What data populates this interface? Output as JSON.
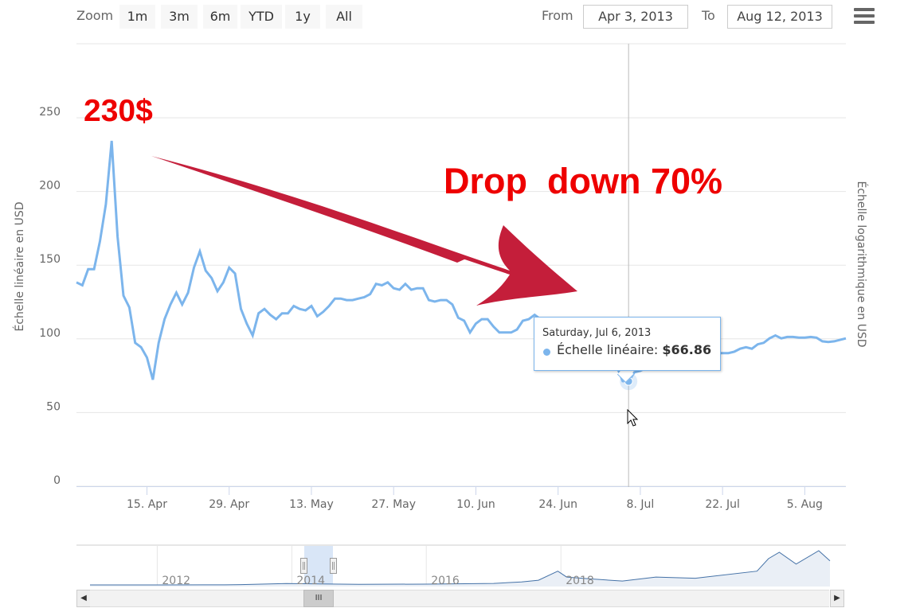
{
  "toolbar": {
    "zoom_label": "Zoom",
    "zoom_buttons": [
      "1m",
      "3m",
      "6m",
      "YTD",
      "1y",
      "All"
    ],
    "from_label": "From",
    "from_value": "Apr 3, 2013",
    "to_label": "To",
    "to_value": "Aug 12, 2013",
    "menu_icon": "hamburger-menu-icon"
  },
  "annotations": {
    "peak_label": "230$",
    "drop_label": "Drop  down 70%",
    "arrow_icon": "red-arrow-icon",
    "color": "#ee0000"
  },
  "tooltip": {
    "date": "Saturday, Jul 6, 2013",
    "series": "Échelle linéaire",
    "value": "$66.86"
  },
  "chart_data": {
    "type": "line",
    "title": "",
    "xlabel": "",
    "ylabel": "Échelle linéaire en USD",
    "ylabel_right": "Échelle logarithmique en USD",
    "ylim": [
      0,
      250
    ],
    "y_ticks": [
      0,
      50,
      100,
      150,
      200,
      250
    ],
    "xlim": [
      "2013-04-03",
      "2013-08-12"
    ],
    "x_ticks": [
      {
        "date": "2013-04-15",
        "label": "15. Apr"
      },
      {
        "date": "2013-04-29",
        "label": "29. Apr"
      },
      {
        "date": "2013-05-13",
        "label": "13. May"
      },
      {
        "date": "2013-05-27",
        "label": "27. May"
      },
      {
        "date": "2013-06-10",
        "label": "10. Jun"
      },
      {
        "date": "2013-06-24",
        "label": "24. Jun"
      },
      {
        "date": "2013-07-08",
        "label": "8. Jul"
      },
      {
        "date": "2013-07-22",
        "label": "22. Jul"
      },
      {
        "date": "2013-08-05",
        "label": "5. Aug"
      }
    ],
    "grid": true,
    "line_color": "#7cb5ec",
    "series": [
      {
        "name": "Échelle linéaire",
        "points": [
          [
            "2013-04-03",
            134
          ],
          [
            "2013-04-04",
            132
          ],
          [
            "2013-04-05",
            143
          ],
          [
            "2013-04-06",
            143
          ],
          [
            "2013-04-07",
            162
          ],
          [
            "2013-04-08",
            187
          ],
          [
            "2013-04-09",
            230
          ],
          [
            "2013-04-10",
            165
          ],
          [
            "2013-04-11",
            125
          ],
          [
            "2013-04-12",
            117
          ],
          [
            "2013-04-13",
            93
          ],
          [
            "2013-04-14",
            90
          ],
          [
            "2013-04-15",
            83
          ],
          [
            "2013-04-16",
            68
          ],
          [
            "2013-04-17",
            93
          ],
          [
            "2013-04-18",
            109
          ],
          [
            "2013-04-19",
            119
          ],
          [
            "2013-04-20",
            127
          ],
          [
            "2013-04-21",
            119
          ],
          [
            "2013-04-22",
            127
          ],
          [
            "2013-04-23",
            144
          ],
          [
            "2013-04-24",
            155
          ],
          [
            "2013-04-25",
            142
          ],
          [
            "2013-04-26",
            137
          ],
          [
            "2013-04-27",
            128
          ],
          [
            "2013-04-28",
            134
          ],
          [
            "2013-04-29",
            144
          ],
          [
            "2013-04-30",
            140
          ],
          [
            "2013-05-01",
            116
          ],
          [
            "2013-05-02",
            106
          ],
          [
            "2013-05-03",
            98
          ],
          [
            "2013-05-04",
            113
          ],
          [
            "2013-05-05",
            116
          ],
          [
            "2013-05-06",
            112
          ],
          [
            "2013-05-07",
            109
          ],
          [
            "2013-05-08",
            113
          ],
          [
            "2013-05-09",
            113
          ],
          [
            "2013-05-10",
            118
          ],
          [
            "2013-05-11",
            116
          ],
          [
            "2013-05-12",
            115
          ],
          [
            "2013-05-13",
            118
          ],
          [
            "2013-05-14",
            111
          ],
          [
            "2013-05-15",
            114
          ],
          [
            "2013-05-16",
            118
          ],
          [
            "2013-05-17",
            123
          ],
          [
            "2013-05-18",
            123
          ],
          [
            "2013-05-19",
            122
          ],
          [
            "2013-05-20",
            122
          ],
          [
            "2013-05-21",
            123
          ],
          [
            "2013-05-22",
            124
          ],
          [
            "2013-05-23",
            126
          ],
          [
            "2013-05-24",
            133
          ],
          [
            "2013-05-25",
            132
          ],
          [
            "2013-05-26",
            134
          ],
          [
            "2013-05-27",
            130
          ],
          [
            "2013-05-28",
            129
          ],
          [
            "2013-05-29",
            133
          ],
          [
            "2013-05-30",
            129
          ],
          [
            "2013-05-31",
            130
          ],
          [
            "2013-06-01",
            130
          ],
          [
            "2013-06-02",
            122
          ],
          [
            "2013-06-03",
            121
          ],
          [
            "2013-06-04",
            122
          ],
          [
            "2013-06-05",
            122
          ],
          [
            "2013-06-06",
            119
          ],
          [
            "2013-06-07",
            110
          ],
          [
            "2013-06-08",
            108
          ],
          [
            "2013-06-09",
            100
          ],
          [
            "2013-06-10",
            106
          ],
          [
            "2013-06-11",
            109
          ],
          [
            "2013-06-12",
            109
          ],
          [
            "2013-06-13",
            104
          ],
          [
            "2013-06-14",
            100
          ],
          [
            "2013-06-15",
            100
          ],
          [
            "2013-06-16",
            100
          ],
          [
            "2013-06-17",
            102
          ],
          [
            "2013-06-18",
            108
          ],
          [
            "2013-06-19",
            109
          ],
          [
            "2013-06-20",
            112
          ],
          [
            "2013-06-21",
            109
          ],
          [
            "2013-06-22",
            108
          ],
          [
            "2013-06-23",
            107
          ],
          [
            "2013-06-24",
            106
          ],
          [
            "2013-06-25",
            104
          ],
          [
            "2013-06-26",
            101
          ],
          [
            "2013-06-27",
            99
          ],
          [
            "2013-06-28",
            96
          ],
          [
            "2013-06-29",
            92
          ],
          [
            "2013-06-30",
            90
          ],
          [
            "2013-07-01",
            88
          ],
          [
            "2013-07-02",
            86
          ],
          [
            "2013-07-03",
            77
          ],
          [
            "2013-07-04",
            77
          ],
          [
            "2013-07-05",
            67
          ],
          [
            "2013-07-06",
            66.86
          ],
          [
            "2013-07-07",
            73
          ],
          [
            "2013-07-08",
            74
          ],
          [
            "2013-07-09",
            76
          ],
          [
            "2013-07-10",
            88
          ],
          [
            "2013-07-11",
            92
          ],
          [
            "2013-07-12",
            93
          ],
          [
            "2013-07-13",
            95
          ],
          [
            "2013-07-14",
            96
          ],
          [
            "2013-07-15",
            95
          ],
          [
            "2013-07-16",
            93
          ],
          [
            "2013-07-17",
            90
          ],
          [
            "2013-07-18",
            88
          ],
          [
            "2013-07-19",
            86
          ],
          [
            "2013-07-20",
            86
          ],
          [
            "2013-07-21",
            86
          ],
          [
            "2013-07-22",
            86
          ],
          [
            "2013-07-23",
            86
          ],
          [
            "2013-07-24",
            87
          ],
          [
            "2013-07-25",
            89
          ],
          [
            "2013-07-26",
            90
          ],
          [
            "2013-07-27",
            89
          ],
          [
            "2013-07-28",
            92
          ],
          [
            "2013-07-29",
            93
          ],
          [
            "2013-07-30",
            96
          ],
          [
            "2013-07-31",
            98
          ],
          [
            "2013-08-01",
            96
          ],
          [
            "2013-08-02",
            97
          ],
          [
            "2013-08-03",
            97
          ],
          [
            "2013-08-04",
            96.5
          ],
          [
            "2013-08-05",
            96.5
          ],
          [
            "2013-08-06",
            97
          ],
          [
            "2013-08-07",
            96.5
          ],
          [
            "2013-08-08",
            94
          ],
          [
            "2013-08-09",
            93.5
          ],
          [
            "2013-08-10",
            94
          ],
          [
            "2013-08-11",
            95
          ],
          [
            "2013-08-12",
            96
          ]
        ]
      }
    ],
    "navigator": {
      "x_labels": [
        "2012",
        "2014",
        "2016",
        "2018"
      ],
      "selected_range": [
        "2013-04-03",
        "2013-08-12"
      ],
      "series": [
        {
          "name": "Échelle linéaire",
          "points": [
            [
              "2011-01-01",
              1
            ],
            [
              "2012-01-01",
              6
            ],
            [
              "2013-01-01",
              14
            ],
            [
              "2013-04-01",
              120
            ],
            [
              "2013-12-01",
              950
            ],
            [
              "2014-06-01",
              600
            ],
            [
              "2015-01-01",
              300
            ],
            [
              "2016-01-01",
              430
            ],
            [
              "2017-01-01",
              1000
            ],
            [
              "2017-06-01",
              2500
            ],
            [
              "2017-09-01",
              4500
            ],
            [
              "2017-12-15",
              19000
            ],
            [
              "2018-02-01",
              9000
            ],
            [
              "2018-06-01",
              6500
            ],
            [
              "2018-12-01",
              3500
            ],
            [
              "2019-06-01",
              9000
            ],
            [
              "2020-01-01",
              7200
            ],
            [
              "2020-12-01",
              19000
            ],
            [
              "2021-02-01",
              45000
            ],
            [
              "2021-04-01",
              60000
            ],
            [
              "2021-07-01",
              33000
            ],
            [
              "2021-11-01",
              64000
            ],
            [
              "2022-01-01",
              40000
            ]
          ]
        }
      ]
    }
  }
}
